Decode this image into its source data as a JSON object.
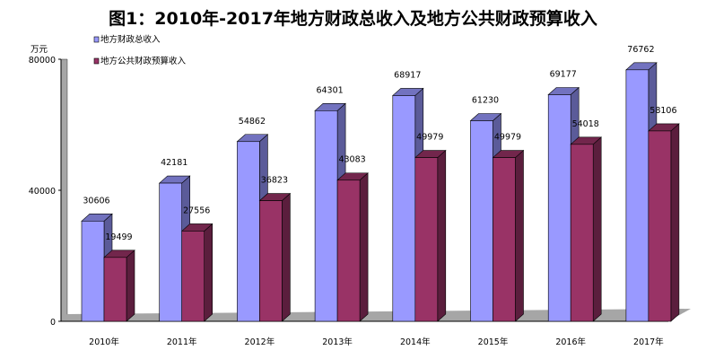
{
  "chart_data": {
    "type": "bar",
    "title": "图1：2010年-2017年地方财政总收入及地方公共财政预算收入",
    "ylabel": "万元",
    "ylim": [
      0,
      80000
    ],
    "yticks": [
      0,
      40000,
      80000
    ],
    "categories": [
      "2010年",
      "2011年",
      "2012年",
      "2013年",
      "2014年",
      "2015年",
      "2016年",
      "2017年"
    ],
    "series": [
      {
        "name": "地方财政总收入",
        "color": "#9999ff",
        "values": [
          30606,
          42181,
          54862,
          64301,
          68917,
          61230,
          69177,
          76762
        ]
      },
      {
        "name": "地方公共财政预算收入",
        "color": "#993366",
        "values": [
          19499,
          27556,
          36823,
          43083,
          49979,
          49979,
          54018,
          58106
        ]
      }
    ],
    "legend": "top-left"
  }
}
